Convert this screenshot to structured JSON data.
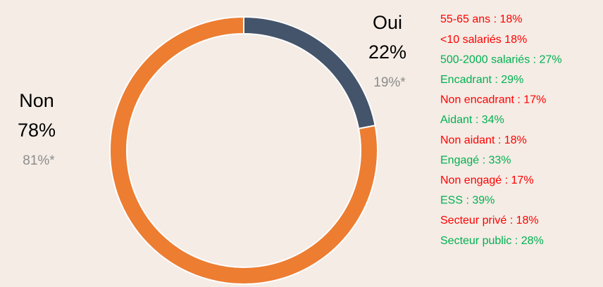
{
  "chart_data": {
    "type": "donut",
    "categories": [
      "Oui",
      "Non"
    ],
    "values": [
      22,
      78
    ],
    "value_labels": [
      "22%",
      "78%"
    ],
    "colors": [
      "#44546a",
      "#ed7d31"
    ],
    "comparison_labels": [
      "19%*",
      "81%*"
    ],
    "notes": [
      {
        "text": "55-65 ans : 18%",
        "color": "#ff0000"
      },
      {
        "text": "<10 salariés 18%",
        "color": "#ff0000"
      },
      {
        "text": "500-2000 salariés : 27%",
        "color": "#00b050"
      },
      {
        "text": "Encadrant : 29%",
        "color": "#00b050"
      },
      {
        "text": "Non encadrant : 17%",
        "color": "#ff0000"
      },
      {
        "text": "Aidant : 34%",
        "color": "#00b050"
      },
      {
        "text": "Non aidant : 18%",
        "color": "#ff0000"
      },
      {
        "text": "Engagé : 33%",
        "color": "#00b050"
      },
      {
        "text": "Non engagé : 17%",
        "color": "#ff0000"
      },
      {
        "text": "ESS : 39%",
        "color": "#00b050"
      },
      {
        "text": "Secteur privé : 18%",
        "color": "#ff0000"
      },
      {
        "text": "Secteur public : 28%",
        "color": "#00b050"
      }
    ]
  }
}
